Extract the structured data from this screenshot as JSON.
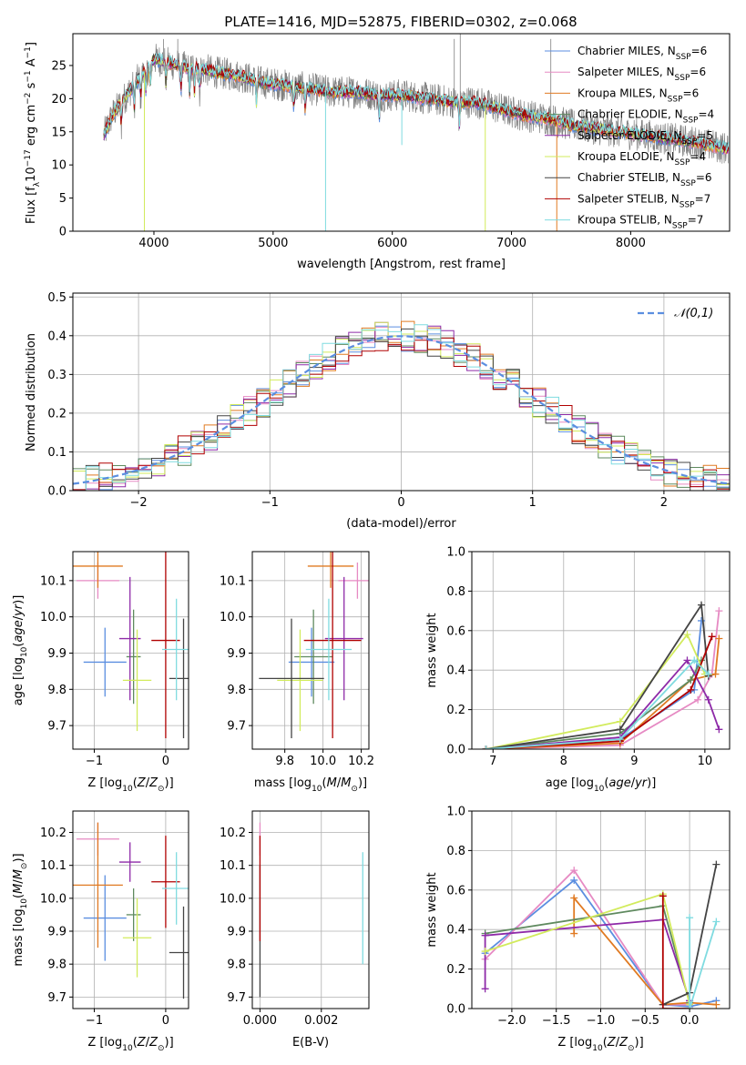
{
  "figure_title": "PLATE=1416, MJD=52875, FIBERID=0302, z=0.068",
  "colors": {
    "Chabrier MILES": "#5b8ee0",
    "Salpeter MILES": "#e68ac3",
    "Kroupa MILES": "#e07a22",
    "Chabrier ELODIE": "#5f8a5f",
    "Salpeter ELODIE": "#8e2aa8",
    "Kroupa ELODIE": "#d2eb5c",
    "Chabrier STELIB": "#444444",
    "Salpeter STELIB": "#b00000",
    "Kroupa STELIB": "#7fdbe0"
  },
  "chart_data": [
    {
      "id": "spectrum",
      "type": "line",
      "title": "PLATE=1416, MJD=52875, FIBERID=0302, z=0.068",
      "xlabel": "wavelength [Angstrom, rest frame]",
      "ylabel": "Flux [f_λ10^-17 erg cm^-2 s^-1 A^-1]",
      "xlim": [
        3320,
        8830
      ],
      "ylim": [
        0,
        29.8
      ],
      "xticks": [
        4000,
        5000,
        6000,
        7000,
        8000
      ],
      "yticks": [
        0,
        5,
        10,
        15,
        20,
        25
      ],
      "grid": false,
      "legend_position": "top-right",
      "legend": [
        "Chabrier MILES, N_SSP=6",
        "Salpeter MILES, N_SSP=6",
        "Kroupa MILES, N_SSP=6",
        "Chabrier ELODIE, N_SSP=4",
        "Salpeter ELODIE, N_SSP=5",
        "Kroupa ELODIE, N_SSP=4",
        "Chabrier STELIB, N_SSP=6",
        "Salpeter STELIB, N_SSP=7",
        "Kroupa STELIB, N_SSP=7"
      ],
      "continuum": {
        "x": [
          3580,
          3650,
          3750,
          3850,
          3950,
          4000,
          4100,
          4200,
          4300,
          4400,
          4500,
          4700,
          4900,
          5100,
          5300,
          5500,
          5700,
          5900,
          6100,
          6300,
          6500,
          6700,
          6900,
          7100,
          7300,
          7500,
          7700,
          7900,
          8100,
          8300,
          8500,
          8800
        ],
        "y": [
          14.5,
          17.5,
          20,
          22.5,
          24.5,
          26,
          25.5,
          25,
          24.5,
          24.5,
          24,
          23.5,
          22.5,
          22,
          21.5,
          21,
          21,
          20.5,
          20.5,
          20,
          19.5,
          19.5,
          18.5,
          17.5,
          17,
          16,
          15.5,
          15,
          14.5,
          14,
          13.5,
          12.5
        ]
      },
      "spikes_down": [
        [
          3920,
          0
        ],
        [
          5440,
          0
        ],
        [
          6780,
          0
        ],
        [
          7380,
          0
        ],
        [
          6080,
          13
        ]
      ]
    },
    {
      "id": "residual-hist",
      "type": "step",
      "xlabel": "(data-model)/error",
      "ylabel": "Normed distribution",
      "xlim": [
        -2.5,
        2.5
      ],
      "ylim": [
        0,
        0.51
      ],
      "xticks": [
        -2,
        -1,
        0,
        1,
        2
      ],
      "yticks": [
        0.0,
        0.1,
        0.2,
        0.3,
        0.4,
        0.5
      ],
      "grid": true,
      "legend_position": "top-right",
      "legend": [
        "𝒩(0,1)"
      ],
      "bin_width": 0.1
    },
    {
      "id": "age-vs-Z",
      "type": "errorbar",
      "xlabel": "Z [log10(Z/Z⊙)]",
      "ylabel": "age [log10(age/yr)]",
      "xlim": [
        -1.3,
        0.32
      ],
      "ylim": [
        9.635,
        10.18
      ],
      "xticks": [
        -1,
        0
      ],
      "yticks": [
        9.7,
        9.8,
        9.9,
        10.0,
        10.1
      ],
      "grid": true,
      "points": [
        {
          "model": "Chabrier MILES",
          "x": -0.85,
          "y": 9.875,
          "xerr": 0.3,
          "yerr": 0.095
        },
        {
          "model": "Salpeter MILES",
          "x": -0.95,
          "y": 10.1,
          "xerr": 0.3,
          "yerr": 0.05
        },
        {
          "model": "Kroupa MILES",
          "x": -0.95,
          "y": 10.14,
          "xerr": 0.35,
          "yerr": 0.06
        },
        {
          "model": "Chabrier ELODIE",
          "x": -0.45,
          "y": 9.89,
          "xerr": 0.1,
          "yerr": 0.13
        },
        {
          "model": "Salpeter ELODIE",
          "x": -0.5,
          "y": 9.94,
          "xerr": 0.15,
          "yerr": 0.17
        },
        {
          "model": "Kroupa ELODIE",
          "x": -0.4,
          "y": 9.825,
          "xerr": 0.2,
          "yerr": 0.14
        },
        {
          "model": "Chabrier STELIB",
          "x": 0.25,
          "y": 9.83,
          "xerr": 0.2,
          "yerr": 0.165
        },
        {
          "model": "Salpeter STELIB",
          "x": 0.0,
          "y": 9.935,
          "xerr": 0.2,
          "yerr": 0.27
        },
        {
          "model": "Kroupa STELIB",
          "x": 0.15,
          "y": 9.91,
          "xerr": 0.2,
          "yerr": 0.14
        }
      ]
    },
    {
      "id": "age-vs-mass",
      "type": "errorbar",
      "xlabel": "mass [log10(M/M⊙)]",
      "xlim": [
        9.63,
        10.24
      ],
      "ylim": [
        9.635,
        10.18
      ],
      "xticks": [
        9.8,
        10.0,
        10.2
      ],
      "yticks": [
        9.7,
        9.8,
        9.9,
        10.0,
        10.1
      ],
      "grid": true,
      "points": [
        {
          "model": "Chabrier MILES",
          "x": 9.94,
          "y": 9.875,
          "xerr": 0.12,
          "yerr": 0.095
        },
        {
          "model": "Salpeter MILES",
          "x": 10.18,
          "y": 10.1,
          "xerr": 0.1,
          "yerr": 0.05
        },
        {
          "model": "Kroupa MILES",
          "x": 10.04,
          "y": 10.14,
          "xerr": 0.12,
          "yerr": 0.06
        },
        {
          "model": "Chabrier ELODIE",
          "x": 9.95,
          "y": 9.89,
          "xerr": 0.1,
          "yerr": 0.13
        },
        {
          "model": "Salpeter ELODIE",
          "x": 10.11,
          "y": 9.94,
          "xerr": 0.1,
          "yerr": 0.17
        },
        {
          "model": "Kroupa ELODIE",
          "x": 9.88,
          "y": 9.825,
          "xerr": 0.12,
          "yerr": 0.14
        },
        {
          "model": "Chabrier STELIB",
          "x": 9.835,
          "y": 9.83,
          "xerr": 0.17,
          "yerr": 0.165
        },
        {
          "model": "Salpeter STELIB",
          "x": 10.05,
          "y": 9.935,
          "xerr": 0.15,
          "yerr": 0.27
        },
        {
          "model": "Kroupa STELIB",
          "x": 10.03,
          "y": 9.91,
          "xerr": 0.12,
          "yerr": 0.14
        }
      ]
    },
    {
      "id": "massweight-vs-age",
      "type": "line",
      "xlabel": "age [log10(age/yr)]",
      "ylabel": "mass weight",
      "xlim": [
        6.7,
        10.35
      ],
      "ylim": [
        0,
        1.0
      ],
      "xticks": [
        7,
        8,
        9,
        10
      ],
      "yticks": [
        0.0,
        0.2,
        0.4,
        0.6,
        0.8,
        1.0
      ],
      "grid": true,
      "series": [
        {
          "model": "Chabrier MILES",
          "x": [
            6.9,
            8.8,
            9.85,
            9.95
          ],
          "y": [
            0.0,
            0.05,
            0.3,
            0.65
          ]
        },
        {
          "model": "Salpeter MILES",
          "x": [
            6.9,
            8.8,
            9.9,
            10.1,
            10.2
          ],
          "y": [
            0.0,
            0.02,
            0.25,
            0.38,
            0.7
          ]
        },
        {
          "model": "Kroupa MILES",
          "x": [
            6.9,
            8.8,
            9.8,
            10.15,
            10.2
          ],
          "y": [
            0.0,
            0.03,
            0.35,
            0.38,
            0.56
          ]
        },
        {
          "model": "Chabrier ELODIE",
          "x": [
            6.9,
            8.8,
            9.8,
            9.95
          ],
          "y": [
            0.0,
            0.08,
            0.35,
            0.45
          ]
        },
        {
          "model": "Salpeter ELODIE",
          "x": [
            6.9,
            8.8,
            9.75,
            10.05,
            10.2
          ],
          "y": [
            0.0,
            0.06,
            0.45,
            0.25,
            0.1
          ]
        },
        {
          "model": "Kroupa ELODIE",
          "x": [
            6.9,
            8.8,
            9.75,
            10.0
          ],
          "y": [
            0.0,
            0.14,
            0.58,
            0.38
          ]
        },
        {
          "model": "Chabrier STELIB",
          "x": [
            6.9,
            8.8,
            9.95,
            10.05
          ],
          "y": [
            0.0,
            0.1,
            0.73,
            0.37
          ]
        },
        {
          "model": "Salpeter STELIB",
          "x": [
            6.9,
            8.8,
            9.8,
            10.1
          ],
          "y": [
            0.0,
            0.04,
            0.3,
            0.57
          ]
        },
        {
          "model": "Kroupa STELIB",
          "x": [
            6.9,
            8.8,
            9.85,
            10.05
          ],
          "y": [
            0.0,
            0.05,
            0.45,
            0.38
          ]
        }
      ]
    },
    {
      "id": "mass-vs-Z",
      "type": "errorbar",
      "xlabel": "Z [log10(Z/Z⊙)]",
      "ylabel": "mass [log10(M/M⊙)]",
      "xlim": [
        -1.3,
        0.32
      ],
      "ylim": [
        9.665,
        10.265
      ],
      "xticks": [
        -1,
        0
      ],
      "yticks": [
        9.7,
        9.8,
        9.9,
        10.0,
        10.1,
        10.2
      ],
      "grid": true,
      "points": [
        {
          "model": "Chabrier MILES",
          "x": -0.85,
          "y": 9.94,
          "xerr": 0.3,
          "yerr": 0.13
        },
        {
          "model": "Salpeter MILES",
          "x": -0.95,
          "y": 10.18,
          "xerr": 0.3,
          "yerr": 0.05
        },
        {
          "model": "Kroupa MILES",
          "x": -0.95,
          "y": 10.04,
          "xerr": 0.35,
          "yerr": 0.19
        },
        {
          "model": "Chabrier ELODIE",
          "x": -0.45,
          "y": 9.95,
          "xerr": 0.1,
          "yerr": 0.08
        },
        {
          "model": "Salpeter ELODIE",
          "x": -0.5,
          "y": 10.11,
          "xerr": 0.15,
          "yerr": 0.06
        },
        {
          "model": "Kroupa ELODIE",
          "x": -0.4,
          "y": 9.88,
          "xerr": 0.2,
          "yerr": 0.12
        },
        {
          "model": "Chabrier STELIB",
          "x": 0.25,
          "y": 9.835,
          "xerr": 0.2,
          "yerr": 0.14
        },
        {
          "model": "Salpeter STELIB",
          "x": 0.0,
          "y": 10.05,
          "xerr": 0.2,
          "yerr": 0.14
        },
        {
          "model": "Kroupa STELIB",
          "x": 0.15,
          "y": 10.03,
          "xerr": 0.2,
          "yerr": 0.11
        }
      ]
    },
    {
      "id": "mass-vs-ebv",
      "type": "errorbar",
      "xlabel": "E(B-V)",
      "xlim": [
        -0.00025,
        0.00355
      ],
      "ylim": [
        9.665,
        10.265
      ],
      "xticks": [
        0.0,
        0.002
      ],
      "yticks": [
        9.7,
        9.8,
        9.9,
        10.0,
        10.1,
        10.2
      ],
      "grid": true,
      "points": [
        {
          "model": "Salpeter MILES",
          "x": 0.0,
          "y": 10.18,
          "xerr": 0,
          "yerr": 0.05
        },
        {
          "model": "Chabrier STELIB",
          "x": 0.0,
          "y": 9.9,
          "xerr": 0,
          "yerr": 0.2
        },
        {
          "model": "Salpeter STELIB",
          "x": 0.0,
          "y": 10.03,
          "xerr": 0,
          "yerr": 0.16
        },
        {
          "model": "Kroupa STELIB",
          "x": 0.00335,
          "y": 9.97,
          "xerr": 0,
          "yerr": 0.17
        }
      ]
    },
    {
      "id": "massweight-vs-Z",
      "type": "line",
      "xlabel": "Z [log10(Z/Z⊙)]",
      "ylabel": "mass weight",
      "xlim": [
        -2.45,
        0.45
      ],
      "ylim": [
        0,
        1.0
      ],
      "xticks": [
        -2.0,
        -1.5,
        -1.0,
        -0.5,
        0.0
      ],
      "yticks": [
        0.0,
        0.2,
        0.4,
        0.6,
        0.8,
        1.0
      ],
      "grid": true,
      "series": [
        {
          "model": "Chabrier MILES",
          "x": [
            -2.3,
            -1.3,
            -0.3,
            0.0,
            0.3
          ],
          "y": [
            0.28,
            0.65,
            0.02,
            0.01,
            0.04
          ]
        },
        {
          "model": "Salpeter MILES",
          "x": [
            -2.3,
            -1.3,
            -0.3,
            0.0
          ],
          "y": [
            0.25,
            0.7,
            0.02,
            0.02
          ]
        },
        {
          "model": "Kroupa MILES",
          "x": [
            -1.3,
            -1.3,
            -0.3,
            0.0,
            0.3
          ],
          "y": [
            0.38,
            0.56,
            0.02,
            0.03,
            0.02
          ]
        },
        {
          "model": "Chabrier ELODIE",
          "x": [
            -2.3,
            -0.3,
            0.0
          ],
          "y": [
            0.38,
            0.52,
            0.03
          ]
        },
        {
          "model": "Salpeter ELODIE",
          "x": [
            -2.3,
            -2.3,
            -0.3,
            0.0
          ],
          "y": [
            0.1,
            0.37,
            0.45,
            0.04
          ]
        },
        {
          "model": "Kroupa ELODIE",
          "x": [
            -2.3,
            -0.3,
            0.0
          ],
          "y": [
            0.29,
            0.58,
            0.02
          ]
        },
        {
          "model": "Chabrier STELIB",
          "x": [
            -0.3,
            0.0,
            0.3
          ],
          "y": [
            0.02,
            0.08,
            0.73
          ]
        },
        {
          "model": "Salpeter STELIB",
          "x": [
            -0.3,
            -0.3,
            0.0
          ],
          "y": [
            0.57,
            0.0,
            0.0
          ]
        },
        {
          "model": "Kroupa STELIB",
          "x": [
            0.0,
            0.0,
            0.3
          ],
          "y": [
            0.46,
            0.0,
            0.44
          ]
        }
      ]
    }
  ]
}
